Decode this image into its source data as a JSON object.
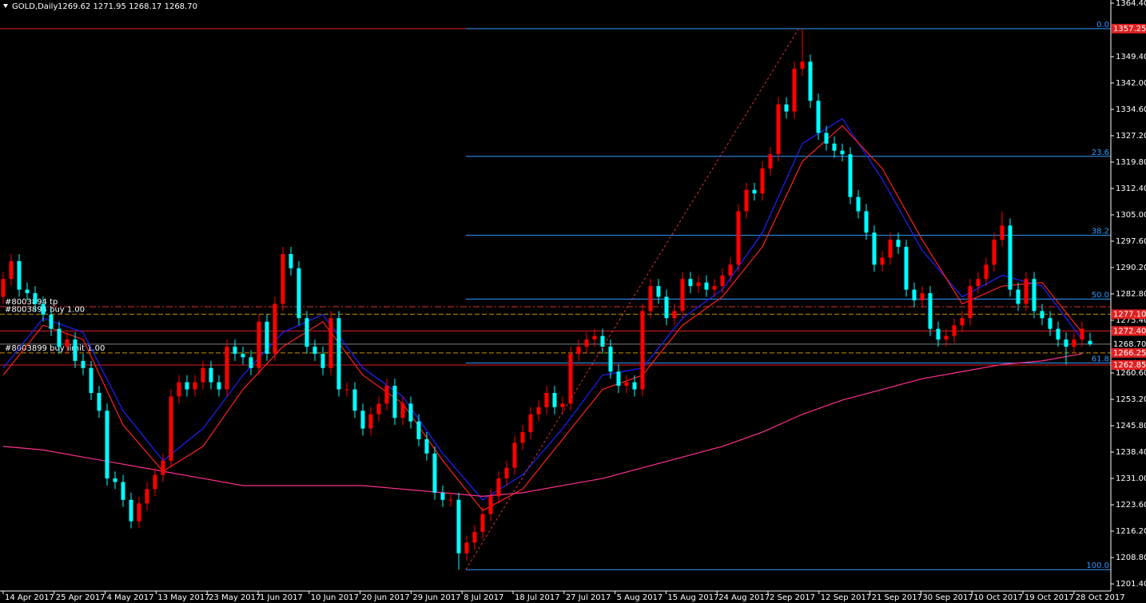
{
  "header": {
    "symbol": "GOLD,Daily",
    "ohlc": "1269.62 1271.95 1268.17 1268.70"
  },
  "chart_data": {
    "type": "candlestick",
    "up_color": "#ff0000",
    "down_color": "#00ffff",
    "open": [
      1282,
      1287,
      1292,
      1284,
      1283,
      1280,
      1277,
      1273,
      1268,
      1270,
      1264,
      1262,
      1255,
      1250,
      1231,
      1230,
      1225,
      1219,
      1224,
      1228,
      1232,
      1236,
      1254,
      1258,
      1256,
      1258,
      1262,
      1258,
      1256,
      1268,
      1266,
      1265,
      1262,
      1275,
      1266,
      1280,
      1294,
      1290,
      1276,
      1268,
      1266,
      1262,
      1276,
      1256,
      1256,
      1250,
      1245,
      1249,
      1252,
      1257,
      1248,
      1252,
      1247,
      1242,
      1238,
      1227,
      1225,
      1225,
      1210,
      1213,
      1216,
      1221,
      1226,
      1231,
      1234,
      1241,
      1244,
      1249,
      1251,
      1255,
      1251,
      1252,
      1266,
      1268,
      1270,
      1271,
      1268,
      1261,
      1257,
      1258,
      1256,
      1278,
      1285,
      1282,
      1276,
      1278,
      1287,
      1285,
      1286,
      1284,
      1285,
      1288,
      1291,
      1306,
      1312,
      1311,
      1318,
      1322,
      1336,
      1334,
      1346,
      1348,
      1337,
      1328,
      1325,
      1323,
      1322,
      1310,
      1306,
      1300,
      1291,
      1293,
      1298,
      1296,
      1284,
      1281,
      1283,
      1273,
      1270,
      1271,
      1274,
      1276,
      1285,
      1287,
      1291,
      1298,
      1302,
      1284,
      1280,
      1287,
      1278,
      1276,
      1273,
      1270,
      1268,
      1270,
      1269.62
    ],
    "high": [
      1289,
      1294,
      1294,
      1286,
      1285,
      1282,
      1279,
      1275,
      1272,
      1272,
      1266,
      1264,
      1257,
      1252,
      1233,
      1232,
      1227,
      1226,
      1230,
      1234,
      1238,
      1256,
      1260,
      1260,
      1260,
      1264,
      1264,
      1260,
      1270,
      1270,
      1268,
      1267,
      1277,
      1277,
      1282,
      1296,
      1296,
      1292,
      1278,
      1270,
      1268,
      1278,
      1278,
      1258,
      1258,
      1252,
      1251,
      1254,
      1259,
      1259,
      1254,
      1254,
      1249,
      1244,
      1240,
      1229,
      1227,
      1227,
      1215,
      1218,
      1223,
      1228,
      1233,
      1236,
      1243,
      1246,
      1251,
      1253,
      1257,
      1257,
      1254,
      1268,
      1270,
      1272,
      1273,
      1273,
      1270,
      1263,
      1260,
      1260,
      1280,
      1287,
      1287,
      1284,
      1280,
      1289,
      1289,
      1288,
      1288,
      1287,
      1290,
      1293,
      1308,
      1314,
      1314,
      1320,
      1324,
      1338,
      1338,
      1348,
      1357.25,
      1350,
      1339,
      1330,
      1327,
      1325,
      1324,
      1312,
      1308,
      1302,
      1295,
      1300,
      1300,
      1298,
      1286,
      1285,
      1285,
      1275,
      1273,
      1276,
      1278,
      1287,
      1289,
      1293,
      1300,
      1306,
      1304,
      1286,
      1289,
      1289,
      1280,
      1278,
      1275,
      1272,
      1272,
      1275,
      1271.95
    ],
    "low": [
      1280,
      1285,
      1282,
      1281,
      1278,
      1275,
      1271,
      1266,
      1266,
      1262,
      1260,
      1253,
      1248,
      1229,
      1228,
      1223,
      1217,
      1217,
      1222,
      1226,
      1230,
      1234,
      1252,
      1254,
      1254,
      1256,
      1256,
      1254,
      1254,
      1264,
      1263,
      1260,
      1260,
      1264,
      1264,
      1278,
      1288,
      1274,
      1266,
      1264,
      1260,
      1260,
      1254,
      1254,
      1248,
      1243,
      1243,
      1247,
      1250,
      1246,
      1246,
      1245,
      1240,
      1236,
      1225,
      1223,
      1223,
      1205.4,
      1208,
      1211,
      1214,
      1219,
      1224,
      1229,
      1232,
      1239,
      1242,
      1247,
      1249,
      1249,
      1249,
      1250,
      1264,
      1266,
      1268,
      1266,
      1259,
      1255,
      1255,
      1254,
      1254,
      1276,
      1280,
      1274,
      1274,
      1276,
      1283,
      1283,
      1282,
      1282,
      1283,
      1286,
      1289,
      1304,
      1309,
      1309,
      1316,
      1320,
      1332,
      1332,
      1344,
      1335,
      1326,
      1323,
      1321,
      1320,
      1308,
      1304,
      1298,
      1289,
      1289,
      1291,
      1294,
      1282,
      1279,
      1279,
      1271,
      1268,
      1268,
      1269,
      1272,
      1274,
      1283,
      1285,
      1289,
      1296,
      1282,
      1278,
      1278,
      1276,
      1274,
      1271,
      1268,
      1263,
      1266,
      1268,
      1268.17
    ],
    "close": [
      1287,
      1292,
      1284,
      1283,
      1280,
      1277,
      1273,
      1268,
      1270,
      1264,
      1262,
      1255,
      1250,
      1231,
      1230,
      1225,
      1219,
      1224,
      1228,
      1232,
      1236,
      1254,
      1258,
      1256,
      1258,
      1262,
      1258,
      1256,
      1268,
      1266,
      1265,
      1262,
      1275,
      1266,
      1280,
      1294,
      1290,
      1276,
      1268,
      1266,
      1262,
      1276,
      1256,
      1256,
      1250,
      1245,
      1249,
      1252,
      1257,
      1248,
      1252,
      1247,
      1242,
      1238,
      1227,
      1225,
      1225,
      1210,
      1213,
      1216,
      1221,
      1226,
      1231,
      1234,
      1241,
      1244,
      1249,
      1251,
      1255,
      1251,
      1252,
      1266,
      1268,
      1270,
      1271,
      1268,
      1261,
      1257,
      1258,
      1256,
      1278,
      1285,
      1282,
      1276,
      1278,
      1287,
      1285,
      1286,
      1284,
      1285,
      1288,
      1291,
      1306,
      1312,
      1311,
      1318,
      1322,
      1336,
      1334,
      1346,
      1348,
      1337,
      1328,
      1325,
      1323,
      1322,
      1310,
      1306,
      1300,
      1291,
      1293,
      1298,
      1296,
      1284,
      1281,
      1283,
      1273,
      1270,
      1271,
      1274,
      1276,
      1285,
      1287,
      1291,
      1298,
      1302,
      1284,
      1280,
      1287,
      1278,
      1276,
      1273,
      1270,
      1268,
      1270,
      1273,
      1268.7
    ],
    "indicators": [
      {
        "color": "#2020ff",
        "values": [
          1262,
          1276,
          1272,
          1250,
          1236,
          1245,
          1260,
          1272,
          1277,
          1262,
          1254,
          1238,
          1225,
          1232,
          1245,
          1260,
          1262,
          1276,
          1284,
          1300,
          1325,
          1332,
          1315,
          1295,
          1282,
          1288,
          1285,
          1270
        ]
      },
      {
        "color": "#ff2020",
        "values": [
          1260,
          1274,
          1270,
          1246,
          1233,
          1240,
          1256,
          1268,
          1275,
          1260,
          1252,
          1236,
          1222,
          1228,
          1242,
          1256,
          1260,
          1274,
          1282,
          1296,
          1320,
          1330,
          1318,
          1298,
          1280,
          1285,
          1286,
          1272
        ]
      },
      {
        "color": "#ff3090",
        "values": [
          1240,
          1239,
          1237,
          1235,
          1233,
          1231,
          1229,
          1229,
          1229,
          1229,
          1228,
          1227,
          1226,
          1227,
          1229,
          1231,
          1234,
          1237,
          1240,
          1244,
          1249,
          1253,
          1256,
          1259,
          1261,
          1263,
          1264,
          1266
        ]
      }
    ],
    "ylim": [
      1199.4,
      1365.3
    ],
    "yticks": [
      {
        "value": 1364.4,
        "label": "1364.40"
      },
      {
        "value": 1349.4,
        "label": "1349.40"
      },
      {
        "value": 1342,
        "label": "1342.00"
      },
      {
        "value": 1334.6,
        "label": "1334.60"
      },
      {
        "value": 1327.2,
        "label": "1327.20"
      },
      {
        "value": 1319.8,
        "label": "1319.80"
      },
      {
        "value": 1312.4,
        "label": "1312.40"
      },
      {
        "value": 1305,
        "label": "1305.00"
      },
      {
        "value": 1297.6,
        "label": "1297.60"
      },
      {
        "value": 1290.2,
        "label": "1290.20"
      },
      {
        "value": 1282.8,
        "label": "1282.80"
      },
      {
        "value": 1275.4,
        "label": "1275.40"
      },
      {
        "value": 1260.6,
        "label": "1260.60"
      },
      {
        "value": 1253.2,
        "label": "1253.20"
      },
      {
        "value": 1245.8,
        "label": "1245.80"
      },
      {
        "value": 1238.4,
        "label": "1238.40"
      },
      {
        "value": 1231,
        "label": "1231.00"
      },
      {
        "value": 1223.6,
        "label": "1223.60"
      },
      {
        "value": 1216.2,
        "label": "1216.20"
      },
      {
        "value": 1208.8,
        "label": "1208.80"
      },
      {
        "value": 1201.4,
        "label": "1201.40"
      }
    ],
    "xlabels": [
      "14 Apr 2017",
      "25 Apr 2017",
      "4 May 2017",
      "13 May 2017",
      "23 May 2017",
      "1 Jun 2017",
      "10 Jun 2017",
      "20 Jun 2017",
      "29 Jun 2017",
      "8 Jul 2017",
      "18 Jul 2017",
      "27 Jul 2017",
      "5 Aug 2017",
      "15 Aug 2017",
      "24 Aug 2017",
      "2 Sep 2017",
      "12 Sep 2017",
      "21 Sep 2017",
      "30 Sep 2017",
      "10 Oct 2017",
      "19 Oct 2017",
      "28 Oct 2017"
    ],
    "fib": {
      "color": "#3399ff",
      "levels": [
        {
          "label": "0.0",
          "price": 1357.25
        },
        {
          "label": "23.6",
          "price": 1321.41
        },
        {
          "label": "38.2",
          "price": 1299.24
        },
        {
          "label": "50.0",
          "price": 1281.33
        },
        {
          "label": "61.8",
          "price": 1263.41
        },
        {
          "label": "100.0",
          "price": 1205.4
        }
      ]
    },
    "order_lines": [
      {
        "price": 1279.2,
        "style": "dashdot",
        "color": "#e03030",
        "label": "#8003894 tp"
      },
      {
        "price": 1277.1,
        "style": "dash",
        "color": "#c89000",
        "label": "#8003894 buy 1.00"
      },
      {
        "price": 1272.4,
        "style": "solid",
        "color": "#e02020"
      },
      {
        "price": 1268.7,
        "style": "solid",
        "color": "#808080"
      },
      {
        "price": 1266.25,
        "style": "dash",
        "color": "#c89000",
        "label": "#8003899 buy limit 1.00"
      },
      {
        "price": 1262.85,
        "style": "solid",
        "color": "#e02020"
      }
    ],
    "price_tags": [
      {
        "price": 1357.25,
        "label": "1357.25",
        "color": "#e02020"
      },
      {
        "price": 1277.1,
        "label": "1277.10",
        "color": "#e02020"
      },
      {
        "price": 1272.4,
        "label": "1272.40",
        "color": "#e02020"
      },
      {
        "price": 1268.7,
        "label": "1268.70",
        "color": "#000000"
      },
      {
        "price": 1266.25,
        "label": "1266.25",
        "color": "#e02020"
      },
      {
        "price": 1262.85,
        "label": "1262.85",
        "color": "#e02020"
      }
    ]
  }
}
